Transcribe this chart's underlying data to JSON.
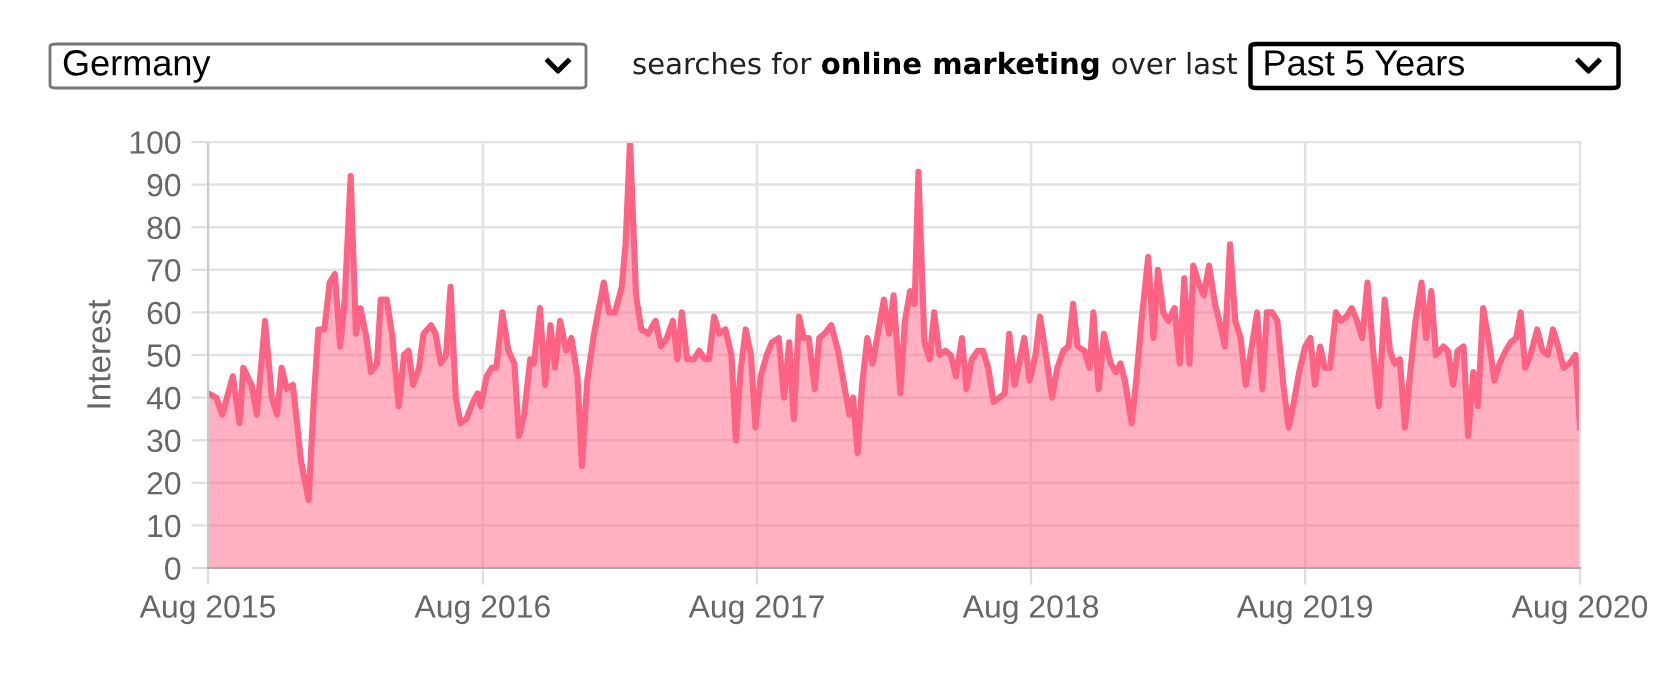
{
  "chart_data": {
    "type": "area",
    "annotations": [
      "Germany",
      "searches for",
      "online marketing",
      "over last",
      "Past 5 Years"
    ],
    "ylabel": "Interest",
    "xlim": [
      "2015-08-01",
      "2020-08-01"
    ],
    "xticks": [
      {
        "value": "2015-08-01",
        "label": "Aug 2015"
      },
      {
        "value": "2016-08-01",
        "label": "Aug 2016"
      },
      {
        "value": "2017-08-01",
        "label": "Aug 2017"
      },
      {
        "value": "2018-08-01",
        "label": "Aug 2018"
      },
      {
        "value": "2019-08-01",
        "label": "Aug 2019"
      },
      {
        "value": "2020-08-01",
        "label": "Aug 2020"
      }
    ],
    "ylim": [
      0,
      100
    ],
    "yticks": [
      0,
      10,
      20,
      30,
      40,
      50,
      60,
      70,
      80,
      90,
      100
    ],
    "grid": true,
    "marker": "none",
    "line_style": "solid",
    "x": [
      "2015-08-01",
      "2015-08-12",
      "2015-08-20",
      "2015-09-03",
      "2015-09-12",
      "2015-09-17",
      "2015-09-28",
      "2015-10-05",
      "2015-10-16",
      "2015-10-25",
      "2015-11-01",
      "2015-11-07",
      "2015-11-14",
      "2015-11-22",
      "2015-12-03",
      "2015-12-13",
      "2015-12-20",
      "2015-12-26",
      "2016-01-03",
      "2016-01-10",
      "2016-01-17",
      "2016-01-24",
      "2016-01-30",
      "2016-02-07",
      "2016-02-14",
      "2016-02-20",
      "2016-02-28",
      "2016-03-05",
      "2016-03-13",
      "2016-03-18",
      "2016-03-26",
      "2016-04-02",
      "2016-04-11",
      "2016-04-18",
      "2016-04-24",
      "2016-04-30",
      "2016-05-08",
      "2016-05-14",
      "2016-05-24",
      "2016-05-30",
      "2016-06-06",
      "2016-06-13",
      "2016-06-19",
      "2016-06-26",
      "2016-07-02",
      "2016-07-10",
      "2016-07-19",
      "2016-07-25",
      "2016-07-29",
      "2016-08-06",
      "2016-08-13",
      "2016-08-19",
      "2016-08-27",
      "2016-09-04",
      "2016-09-12",
      "2016-09-18",
      "2016-09-25",
      "2016-10-03",
      "2016-10-08",
      "2016-10-16",
      "2016-10-23",
      "2016-10-30",
      "2016-11-05",
      "2016-11-12",
      "2016-11-20",
      "2016-11-27",
      "2016-12-05",
      "2016-12-11",
      "2016-12-18",
      "2016-12-27",
      "2017-01-09",
      "2017-01-16",
      "2017-01-24",
      "2017-02-02",
      "2017-02-07",
      "2017-02-13",
      "2017-02-21",
      "2017-02-28",
      "2017-03-09",
      "2017-03-19",
      "2017-03-26",
      "2017-04-03",
      "2017-04-11",
      "2017-04-17",
      "2017-04-23",
      "2017-04-30",
      "2017-05-09",
      "2017-05-16",
      "2017-05-24",
      "2017-05-29",
      "2017-06-05",
      "2017-06-12",
      "2017-06-20",
      "2017-06-28",
      "2017-07-04",
      "2017-07-10",
      "2017-07-17",
      "2017-07-24",
      "2017-07-30",
      "2017-08-06",
      "2017-08-14",
      "2017-08-21",
      "2017-08-30",
      "2017-09-06",
      "2017-09-13",
      "2017-09-19",
      "2017-09-26",
      "2017-10-02",
      "2017-10-09",
      "2017-10-17",
      "2017-10-23",
      "2017-10-30",
      "2017-11-08",
      "2017-11-17",
      "2017-11-25",
      "2017-12-02",
      "2017-12-07",
      "2017-12-13",
      "2017-12-19",
      "2017-12-26",
      "2018-01-02",
      "2018-01-08",
      "2018-01-17",
      "2018-01-24",
      "2018-01-30",
      "2018-02-08",
      "2018-02-14",
      "2018-02-21",
      "2018-02-27",
      "2018-03-04",
      "2018-03-12",
      "2018-03-19",
      "2018-03-25",
      "2018-04-01",
      "2018-04-09",
      "2018-04-16",
      "2018-04-23",
      "2018-05-01",
      "2018-05-07",
      "2018-05-14",
      "2018-05-22",
      "2018-05-29",
      "2018-06-05",
      "2018-06-12",
      "2018-06-20",
      "2018-06-27",
      "2018-07-03",
      "2018-07-10",
      "2018-07-16",
      "2018-07-23",
      "2018-07-30",
      "2018-08-07",
      "2018-08-13",
      "2018-08-20",
      "2018-08-29",
      "2018-09-05",
      "2018-09-13",
      "2018-09-20",
      "2018-09-26",
      "2018-10-02",
      "2018-10-11",
      "2018-10-18",
      "2018-10-23",
      "2018-10-30",
      "2018-11-06",
      "2018-11-15",
      "2018-11-22",
      "2018-11-28",
      "2018-12-04",
      "2018-12-13",
      "2018-12-19",
      "2018-12-26",
      "2019-01-04",
      "2019-01-11",
      "2019-01-17",
      "2019-01-24",
      "2019-01-31",
      "2019-02-08",
      "2019-02-15",
      "2019-02-21",
      "2019-02-28",
      "2019-03-05",
      "2019-03-12",
      "2019-03-19",
      "2019-03-26",
      "2019-04-03",
      "2019-04-10",
      "2019-04-16",
      "2019-04-23",
      "2019-04-30",
      "2019-05-07",
      "2019-05-14",
      "2019-05-21",
      "2019-05-29",
      "2019-06-05",
      "2019-06-11",
      "2019-06-18",
      "2019-06-25",
      "2019-07-03",
      "2019-07-10",
      "2019-07-16",
      "2019-07-24",
      "2019-08-01",
      "2019-08-08",
      "2019-08-14",
      "2019-08-21",
      "2019-08-27",
      "2019-09-03",
      "2019-09-11",
      "2019-09-18",
      "2019-09-25",
      "2019-10-02",
      "2019-10-09",
      "2019-10-16",
      "2019-10-23",
      "2019-10-31",
      "2019-11-07",
      "2019-11-15",
      "2019-11-22",
      "2019-11-28",
      "2019-12-05",
      "2019-12-12",
      "2019-12-19",
      "2019-12-26",
      "2020-01-03",
      "2020-01-09",
      "2020-01-16",
      "2020-01-22",
      "2020-02-01",
      "2020-02-07",
      "2020-02-14",
      "2020-02-20",
      "2020-02-28",
      "2020-03-05",
      "2020-03-12",
      "2020-03-18",
      "2020-03-25",
      "2020-04-02",
      "2020-04-09",
      "2020-04-16",
      "2020-04-24",
      "2020-05-01",
      "2020-05-08",
      "2020-05-14",
      "2020-05-20",
      "2020-05-27",
      "2020-06-05",
      "2020-06-12",
      "2020-06-19",
      "2020-06-26",
      "2020-07-03",
      "2020-07-10",
      "2020-07-18",
      "2020-07-26",
      "2020-08-01"
    ],
    "series": [
      {
        "color": "#ff6384",
        "values": [
          41,
          40,
          36,
          45,
          34,
          47,
          43,
          36,
          58,
          40,
          36,
          47,
          42,
          43,
          25,
          16,
          40,
          56,
          56,
          67,
          69,
          52,
          63,
          92,
          55,
          61,
          54,
          46,
          48,
          63,
          63,
          55,
          38,
          50,
          51,
          43,
          47,
          55,
          57,
          55,
          48,
          50,
          66,
          40,
          34,
          35,
          39,
          41,
          38,
          45,
          47,
          47,
          60,
          51,
          48,
          31,
          36,
          49,
          48,
          61,
          43,
          57,
          47,
          58,
          51,
          54,
          45,
          24,
          44,
          55,
          67,
          60,
          60,
          66,
          76,
          100,
          64,
          56,
          55,
          58,
          52,
          54,
          58,
          49,
          60,
          49,
          49,
          51,
          49,
          49,
          59,
          55,
          56,
          50,
          30,
          46,
          56,
          50,
          33,
          45,
          50,
          53,
          54,
          40,
          53,
          35,
          59,
          54,
          54,
          42,
          54,
          55,
          57,
          51,
          43,
          36,
          40,
          27,
          43,
          54,
          48,
          54,
          63,
          55,
          64,
          41,
          58,
          65,
          62,
          93,
          53,
          49,
          60,
          50,
          51,
          50,
          45,
          54,
          42,
          49,
          51,
          51,
          47,
          39,
          40,
          41,
          55,
          43,
          48,
          54,
          44,
          50,
          59,
          51,
          40,
          47,
          51,
          52,
          62,
          52,
          51,
          47,
          60,
          42,
          55,
          48,
          46,
          48,
          44,
          34,
          44,
          58,
          73,
          54,
          70,
          60,
          58,
          61,
          48,
          68,
          48,
          71,
          67,
          64,
          71,
          62,
          57,
          52,
          76,
          58,
          54,
          43,
          51,
          60,
          42,
          60,
          60,
          58,
          43,
          33,
          38,
          46,
          52,
          54,
          43,
          52,
          47,
          47,
          60,
          58,
          59,
          61,
          58,
          54,
          67,
          50,
          38,
          63,
          51,
          48,
          49,
          33,
          46,
          58,
          67,
          54,
          65,
          50,
          52,
          51,
          43,
          51,
          52,
          31,
          46,
          38,
          61,
          53,
          44,
          48,
          51,
          53,
          54,
          60,
          47,
          50,
          56,
          51,
          50,
          56,
          52,
          47,
          48,
          50,
          33
        ]
      }
    ]
  }
}
